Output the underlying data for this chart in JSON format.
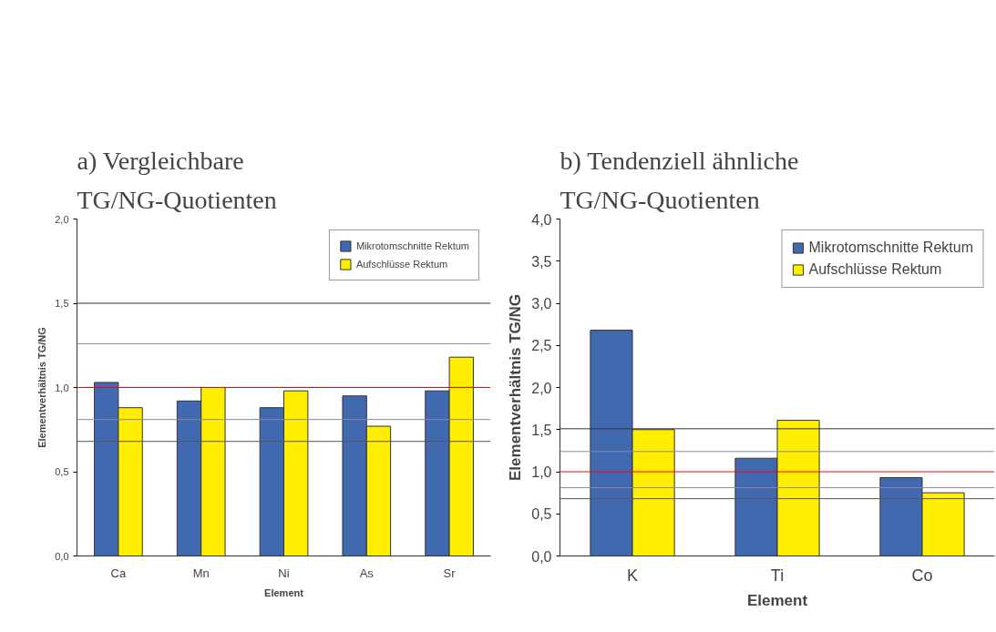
{
  "chart_data": [
    {
      "type": "bar",
      "title": "a) Vergleichbare\nTG/NG-Quotienten",
      "xlabel": "Element",
      "ylabel": "Elementverhältnis TG/NG",
      "categories": [
        "Ca",
        "Mn",
        "Ni",
        "As",
        "Sr"
      ],
      "series": [
        {
          "name": "Mikrotomschnitte Rektum",
          "color": "#4169b0",
          "values": [
            1.03,
            0.92,
            0.88,
            0.95,
            0.98
          ]
        },
        {
          "name": "Aufschlüsse Rektum",
          "color": "#ffee00",
          "values": [
            0.88,
            1.0,
            0.98,
            0.77,
            1.18
          ]
        }
      ],
      "ylim": [
        0,
        2
      ],
      "yticks": [
        {
          "value": 0,
          "label": "0,0"
        },
        {
          "value": 0.5,
          "label": "0,5"
        },
        {
          "value": 1,
          "label": "1,0"
        },
        {
          "value": 1.5,
          "label": "1,5"
        },
        {
          "value": 2,
          "label": "2,0"
        }
      ],
      "ref_lines": [
        {
          "axis": "y",
          "value": 1.5,
          "color": "#333333"
        },
        {
          "axis": "y",
          "value": 1.26,
          "color": "#8888a8"
        },
        {
          "axis": "y",
          "value": 1.0,
          "color": "#ff0000"
        },
        {
          "axis": "y",
          "value": 0.81,
          "color": "#8888a8"
        },
        {
          "axis": "y",
          "value": 0.68,
          "color": "#555555"
        }
      ],
      "legend": "top right",
      "grid": false
    },
    {
      "type": "bar",
      "title": "b) Tendenziell ähnliche\nTG/NG-Quotienten",
      "xlabel": "Element",
      "ylabel": "Elementverhältnis TG/NG",
      "categories": [
        "K",
        "Ti",
        "Co"
      ],
      "series": [
        {
          "name": "Mikrotomschnitte Rektum",
          "color": "#4169b0",
          "values": [
            2.68,
            1.16,
            0.93
          ]
        },
        {
          "name": "Aufschlüsse Rektum",
          "color": "#ffee00",
          "values": [
            1.5,
            1.61,
            0.75
          ]
        }
      ],
      "ylim": [
        0,
        4
      ],
      "yticks": [
        {
          "value": 0,
          "label": "0,0"
        },
        {
          "value": 0.5,
          "label": "0,5"
        },
        {
          "value": 1,
          "label": "1,0"
        },
        {
          "value": 1.5,
          "label": "1,5"
        },
        {
          "value": 2,
          "label": "2,0"
        },
        {
          "value": 2.5,
          "label": "2,5"
        },
        {
          "value": 3,
          "label": "3,0"
        },
        {
          "value": 3.5,
          "label": "3,5"
        },
        {
          "value": 4,
          "label": "4,0"
        }
      ],
      "ref_lines": [
        {
          "axis": "y",
          "value": 1.51,
          "color": "#333333"
        },
        {
          "axis": "y",
          "value": 1.24,
          "color": "#8888a8"
        },
        {
          "axis": "y",
          "value": 1.0,
          "color": "#ff0000"
        },
        {
          "axis": "y",
          "value": 0.81,
          "color": "#8888a8"
        },
        {
          "axis": "y",
          "value": 0.68,
          "color": "#555555"
        }
      ],
      "legend": "top right",
      "grid": false
    }
  ]
}
